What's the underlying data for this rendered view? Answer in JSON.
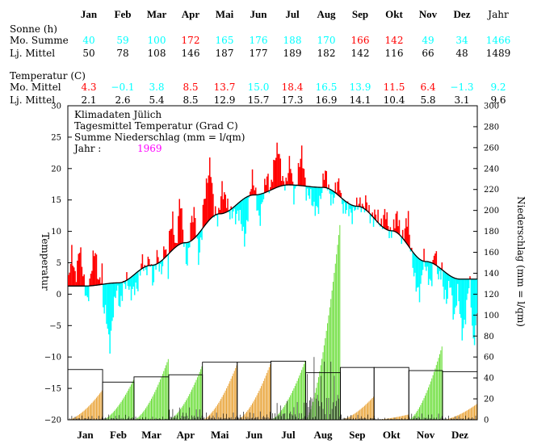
{
  "months": [
    "Jan",
    "Feb",
    "Mar",
    "Apr",
    "Mai",
    "Jun",
    "Jul",
    "Aug",
    "Sep",
    "Okt",
    "Nov",
    "Dez"
  ],
  "year_header": "Jahr",
  "sections": {
    "sun": "Sonne (h)",
    "temp": "Temperatur (C)"
  },
  "rows": {
    "sun_month": {
      "label": "Mo. Summe",
      "values": [
        "40",
        "59",
        "100",
        "172",
        "165",
        "176",
        "188",
        "170",
        "166",
        "142",
        "49",
        "34"
      ],
      "year": "1466",
      "colors": [
        "#00ffff",
        "#00ffff",
        "#00ffff",
        "#ff0000",
        "#00ffff",
        "#00ffff",
        "#00ffff",
        "#00ffff",
        "#ff0000",
        "#ff0000",
        "#00ffff",
        "#00ffff"
      ],
      "year_color": "#00ffff"
    },
    "sun_mean": {
      "label": "Lj. Mittel",
      "values": [
        "50",
        "78",
        "108",
        "146",
        "187",
        "177",
        "189",
        "182",
        "142",
        "116",
        "66",
        "48"
      ],
      "year": "1489"
    },
    "temp_month": {
      "label": "Mo. Mittel",
      "values": [
        "4.3",
        "−0.1",
        "3.8",
        "8.5",
        "13.7",
        "15.0",
        "18.4",
        "16.5",
        "13.9",
        "11.5",
        "6.4",
        "−1.3"
      ],
      "year": "9.2",
      "colors": [
        "#ff0000",
        "#00ffff",
        "#00ffff",
        "#ff0000",
        "#ff0000",
        "#00ffff",
        "#ff0000",
        "#00ffff",
        "#00ffff",
        "#ff0000",
        "#ff0000",
        "#00ffff"
      ],
      "year_color": "#00ffff"
    },
    "temp_mean": {
      "label": "Lj. Mittel",
      "values": [
        "2.1",
        "2.6",
        "5.4",
        "8.5",
        "12.9",
        "15.7",
        "17.3",
        "16.9",
        "14.1",
        "10.4",
        "5.8",
        "3.1"
      ],
      "year": "9.6"
    }
  },
  "annotation": {
    "line1": "Klimadaten Jülich",
    "line2": "Tagesmittel Temperatur (Grad C)",
    "line3": "Summe Niederschlag (mm = l/qm)",
    "year_label": "Jahr :",
    "year_value": "1969",
    "year_color": "#ff00ff"
  },
  "colors": {
    "warm": "#ff0000",
    "cold": "#00ffff",
    "precip_above": "#66dd33",
    "precip_below": "#e8a030",
    "daily_precip": "#000000"
  },
  "chart_data": {
    "type": "bar",
    "left_axis": {
      "label": "Temperatur",
      "range": [
        -20,
        30
      ],
      "ticks": [
        30,
        25,
        20,
        15,
        10,
        5,
        0,
        -5,
        -10,
        -15,
        -20
      ]
    },
    "right_axis": {
      "label": "Niederschlag (mm = l/qm)",
      "range": [
        0,
        300
      ],
      "ticks": [
        300,
        280,
        260,
        240,
        220,
        200,
        180,
        160,
        140,
        120,
        100,
        80,
        60,
        40,
        20,
        0
      ]
    },
    "x_categories": [
      "Jan",
      "Feb",
      "Mar",
      "Apr",
      "Mai",
      "Jun",
      "Jul",
      "Aug",
      "Sep",
      "Okt",
      "Nov",
      "Dez"
    ],
    "temperature_normal_monthly": [
      1.3,
      1.8,
      4.6,
      8.2,
      12.8,
      15.8,
      17.4,
      17.0,
      14.0,
      10.1,
      5.2,
      2.4
    ],
    "temperature_daily_samples": {
      "Jan": [
        1.0,
        6.0,
        3.0,
        8.0,
        2.0,
        -1.0,
        4.0,
        6.5,
        2.0,
        5.0
      ],
      "Feb": [
        -1.0,
        -4.0,
        -9.0,
        -2.0,
        1.0,
        -3.0,
        2.0,
        3.0,
        -1.0,
        0.5
      ],
      "Mar": [
        1.0,
        2.0,
        5.0,
        3.0,
        7.0,
        1.0,
        6.0,
        4.0,
        8.0,
        2.0
      ],
      "Apr": [
        8.0,
        13.0,
        7.0,
        15.0,
        9.0,
        5.0,
        11.0,
        13.0,
        6.0,
        10.0
      ],
      "Mai": [
        12.0,
        17.0,
        22.0,
        13.0,
        11.0,
        18.0,
        15.0,
        12.0,
        14.0,
        12.0
      ],
      "Jun": [
        13.0,
        11.0,
        9.0,
        14.0,
        18.0,
        16.0,
        12.0,
        15.0,
        19.0,
        17.0
      ],
      "Jul": [
        18.0,
        21.0,
        23.0,
        19.0,
        17.0,
        21.0,
        16.0,
        19.0,
        22.0,
        18.0
      ],
      "Aug": [
        17.0,
        16.0,
        13.0,
        14.0,
        16.0,
        19.0,
        17.0,
        15.0,
        16.5,
        18.0
      ],
      "Sep": [
        16.0,
        14.0,
        13.0,
        12.0,
        15.0,
        14.0,
        13.0,
        16.0,
        12.0,
        11.0
      ],
      "Okt": [
        12.0,
        13.0,
        11.0,
        12.5,
        10.0,
        11.0,
        12.0,
        9.0,
        11.0,
        12.0
      ],
      "Nov": [
        9.0,
        5.0,
        2.0,
        -1.0,
        6.0,
        4.0,
        1.0,
        7.0,
        3.0,
        5.0
      ],
      "Dez": [
        1.0,
        -2.0,
        3.0,
        -4.0,
        0.0,
        -6.0,
        -3.0,
        2.0,
        -8.0,
        -2.0
      ]
    },
    "precip_monthly_normal": [
      48,
      36,
      41,
      43,
      55,
      55,
      56,
      45,
      50,
      50,
      47,
      46
    ],
    "precip_cumulative_end": [
      28,
      38,
      58,
      51,
      52,
      53,
      56,
      186,
      22,
      5,
      70,
      15
    ],
    "precip_daily_max": [
      4,
      5,
      3,
      12,
      7,
      8,
      18,
      60,
      5,
      2,
      6,
      4
    ]
  }
}
